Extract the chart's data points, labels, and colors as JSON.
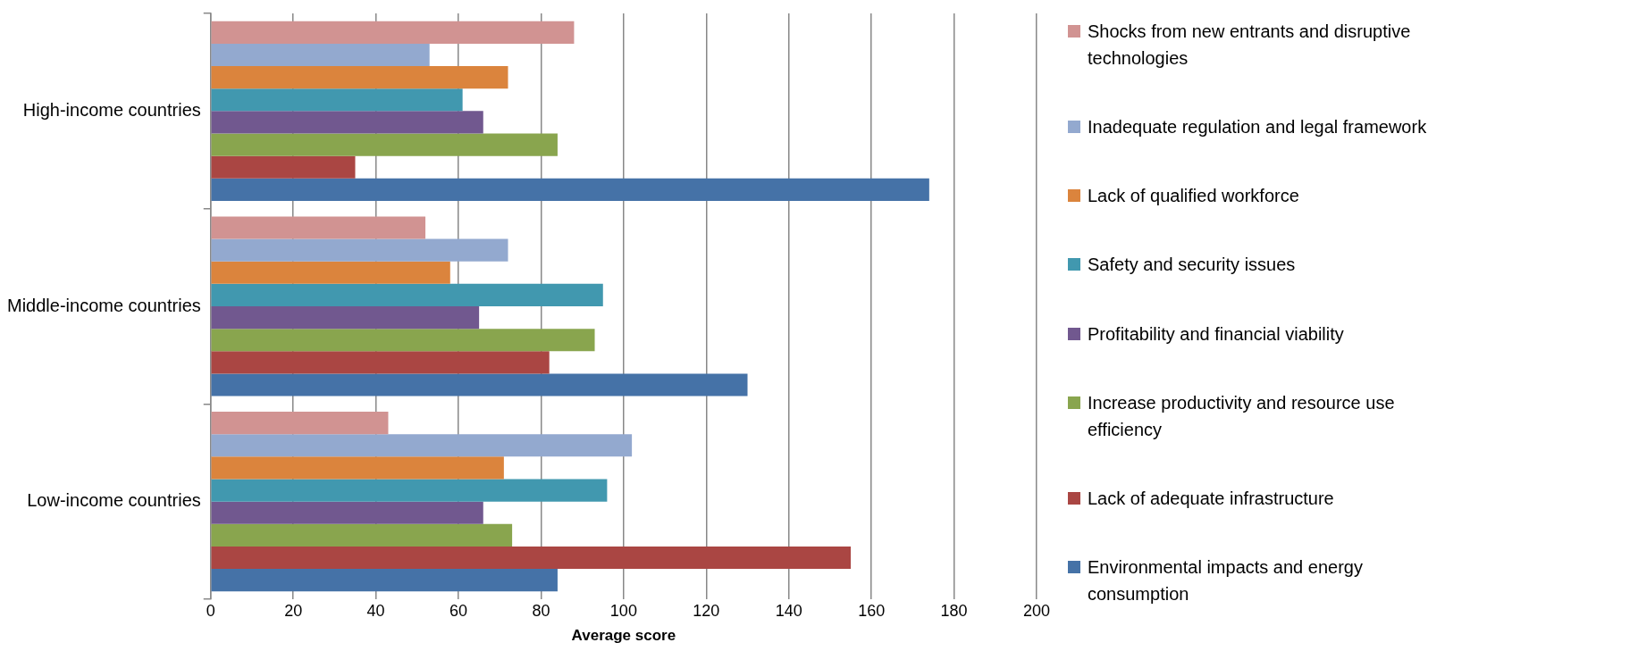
{
  "chart_data": {
    "type": "bar",
    "orientation": "horizontal",
    "xlabel": "Average score",
    "categories": [
      "High-income countries",
      "Middle-income countries",
      "Low-income countries"
    ],
    "series": [
      {
        "name": "Shocks from new entrants and disruptive technologies",
        "color": "#d19392",
        "values": [
          88,
          52,
          43
        ]
      },
      {
        "name": "Inadequate regulation and legal framework",
        "color": "#93a9cf",
        "values": [
          53,
          72,
          102
        ]
      },
      {
        "name": "Lack of qualified workforce",
        "color": "#db843d",
        "values": [
          72,
          58,
          71
        ]
      },
      {
        "name": "Safety and security issues",
        "color": "#4198af",
        "values": [
          61,
          95,
          96
        ]
      },
      {
        "name": "Profitability and financial viability",
        "color": "#71588f",
        "values": [
          66,
          65,
          66
        ]
      },
      {
        "name": "Increase productivity and resource use efficiency",
        "color": "#89a54e",
        "values": [
          84,
          93,
          73
        ]
      },
      {
        "name": "Lack of adequate infrastructure",
        "color": "#aa4643",
        "values": [
          35,
          82,
          155
        ]
      },
      {
        "name": "Environmental impacts and energy consumption",
        "color": "#4572a7",
        "values": [
          174,
          130,
          84
        ]
      }
    ],
    "xlim": [
      0,
      200
    ],
    "xticks": [
      0,
      20,
      40,
      60,
      80,
      100,
      120,
      140,
      160,
      180,
      200
    ],
    "grid": "x",
    "legend": "right"
  }
}
